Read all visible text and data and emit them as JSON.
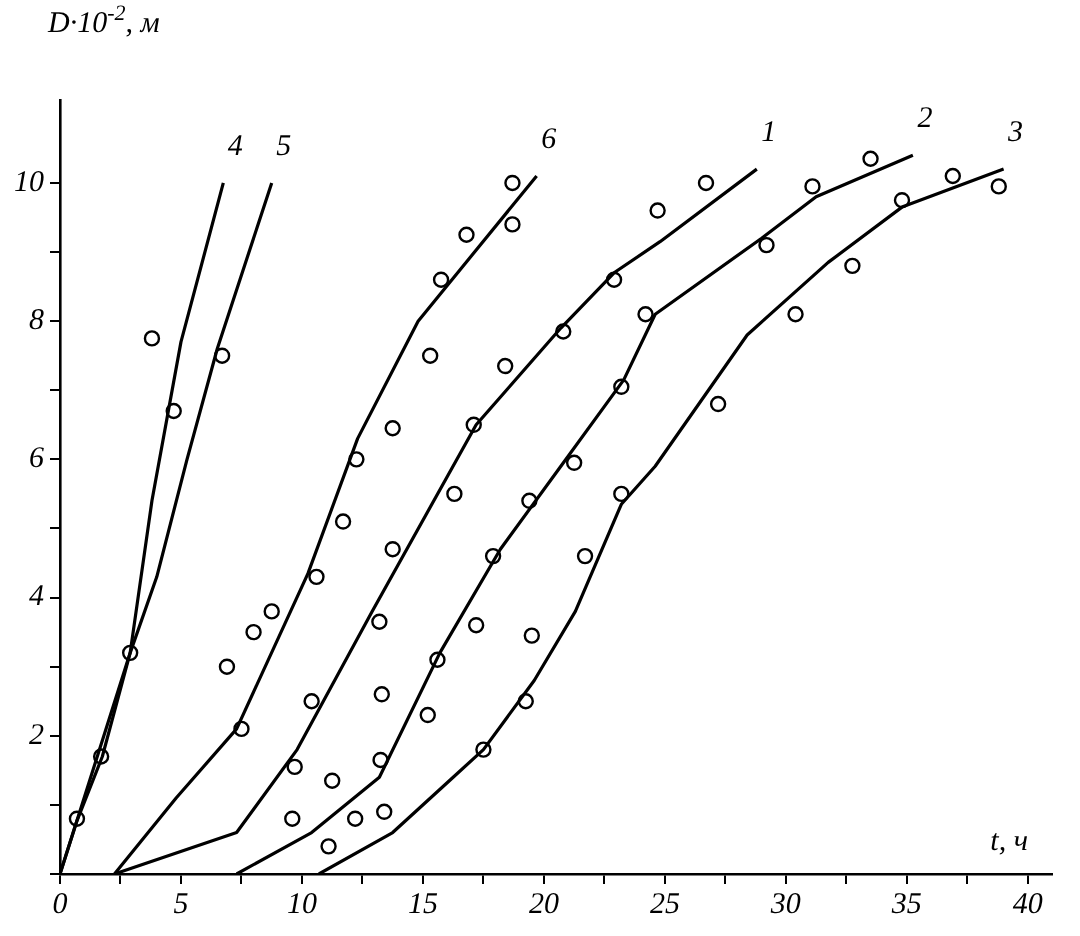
{
  "chart_data": {
    "type": "line",
    "xlabel": "t, ч",
    "ylabel": "D·10$^{-2}$, м",
    "xlim": [
      0,
      41
    ],
    "ylim": [
      0,
      11.2
    ],
    "xticks": [
      0,
      {
        "value": 2.5,
        "label": null
      },
      5,
      {
        "value": 7.5,
        "label": null
      },
      10,
      {
        "value": 12.5,
        "label": null
      },
      15,
      {
        "value": 17.5,
        "label": null
      },
      20,
      {
        "value": 22.5,
        "label": null
      },
      25,
      {
        "value": 27.5,
        "label": null
      },
      30,
      {
        "value": 32.5,
        "label": null
      },
      35,
      {
        "value": 37.5,
        "label": null
      },
      40
    ],
    "yticks": [
      {
        "value": 0,
        "label": null
      },
      {
        "value": 1,
        "label": null
      },
      2,
      {
        "value": 3,
        "label": null
      },
      4,
      {
        "value": 5,
        "label": null
      },
      6,
      {
        "value": 7,
        "label": null
      },
      8,
      {
        "value": 9,
        "label": null
      },
      10
    ],
    "grid": false,
    "legend": false,
    "tick_labels": true,
    "series": [
      {
        "name": "1",
        "type": "line",
        "color": "#000000",
        "marker": "none",
        "x": [
          2.25,
          7.3,
          9.8,
          12.9,
          17.2,
          20.7,
          22.9,
          24.8,
          28.8
        ],
        "values": [
          0,
          0.6,
          1.8,
          3.8,
          6.5,
          7.9,
          8.7,
          9.15,
          10.2
        ]
      },
      {
        "name": "2",
        "type": "line",
        "color": "#000000",
        "marker": "none",
        "x": [
          7.3,
          10.4,
          13.2,
          15.7,
          18.2,
          20.7,
          23.3,
          24.6,
          29,
          31.25,
          35.25
        ],
        "values": [
          0,
          0.6,
          1.4,
          3.2,
          4.7,
          5.9,
          7.15,
          8.1,
          9.2,
          9.8,
          10.4
        ]
      },
      {
        "name": "3",
        "type": "line",
        "color": "#000000",
        "marker": "none",
        "x": [
          10.7,
          13.75,
          16.25,
          17.5,
          19.6,
          21.3,
          23.2,
          24.6,
          28.4,
          31.75,
          34.8,
          39
        ],
        "values": [
          0,
          0.6,
          1.4,
          1.8,
          2.8,
          3.8,
          5.35,
          5.9,
          7.8,
          8.85,
          9.65,
          10.2
        ]
      },
      {
        "name": "4",
        "type": "line",
        "color": "#000000",
        "marker": "none",
        "x": [
          0,
          0.7,
          1.75,
          2.9,
          3.8,
          5,
          6.75
        ],
        "values": [
          0,
          0.77,
          1.7,
          3.2,
          5.4,
          7.7,
          10
        ]
      },
      {
        "name": "5",
        "type": "line",
        "color": "#000000",
        "marker": "none",
        "x": [
          0,
          2.9,
          4,
          5.25,
          6.5,
          8.75
        ],
        "values": [
          0,
          3.2,
          4.3,
          6,
          7.6,
          10
        ]
      },
      {
        "name": "6",
        "type": "line",
        "color": "#000000",
        "marker": "none",
        "x": [
          2.25,
          4.8,
          7.3,
          10.25,
          12.3,
          14.8,
          19.7
        ],
        "values": [
          0,
          1.1,
          2.1,
          4.35,
          6.3,
          8,
          10.1
        ]
      },
      {
        "type": "scatter",
        "color": "#000000",
        "marker": "circle",
        "x": [
          9.6,
          9.7,
          10.4,
          13.2,
          13.75,
          16.3,
          17.1,
          18.4,
          20.8,
          22.9,
          24.7,
          26.7
        ],
        "values": [
          0.8,
          1.55,
          2.5,
          3.65,
          4.7,
          5.5,
          6.5,
          7.35,
          7.85,
          8.6,
          9.6,
          10
        ]
      },
      {
        "type": "scatter",
        "color": "#000000",
        "marker": "circle",
        "x": [
          11.25,
          12.2,
          13.4,
          13.25,
          13.3,
          15.2,
          15.6,
          17.2,
          17.9,
          19.4,
          21.25,
          23.2,
          24.2,
          29.2,
          31.1,
          33.5
        ],
        "values": [
          1.35,
          0.8,
          0.9,
          1.65,
          2.6,
          2.3,
          3.1,
          3.6,
          4.6,
          5.4,
          5.95,
          7.05,
          8.1,
          9.1,
          9.95,
          10.35
        ]
      },
      {
        "type": "scatter",
        "color": "#000000",
        "marker": "circle",
        "x": [
          11.1,
          17.5,
          19.25,
          19.5,
          21.7,
          23.2,
          27.2,
          30.4,
          32.75,
          34.8,
          36.9,
          38.8
        ],
        "values": [
          0.4,
          1.8,
          2.5,
          3.45,
          4.6,
          5.5,
          6.8,
          8.1,
          8.8,
          9.75,
          10.1,
          9.95
        ]
      },
      {
        "type": "scatter",
        "color": "#000000",
        "marker": "circle",
        "x": [
          0.7,
          1.7,
          2.9,
          3.8,
          4.7
        ],
        "values": [
          0.8,
          1.7,
          3.2,
          7.75,
          6.7
        ]
      },
      {
        "type": "scatter",
        "color": "#000000",
        "marker": "circle",
        "x": [
          6.7
        ],
        "values": [
          7.5
        ]
      },
      {
        "type": "scatter",
        "color": "#000000",
        "marker": "circle",
        "x": [
          7.5,
          6.9,
          8,
          8.75,
          10.6,
          11.7,
          12.25,
          13.75,
          15.3,
          15.75,
          16.8,
          18.7,
          18.7
        ],
        "values": [
          2.1,
          3.0,
          3.5,
          3.8,
          4.3,
          5.1,
          6.0,
          6.45,
          7.5,
          8.6,
          9.25,
          10.0,
          9.4
        ]
      }
    ]
  }
}
